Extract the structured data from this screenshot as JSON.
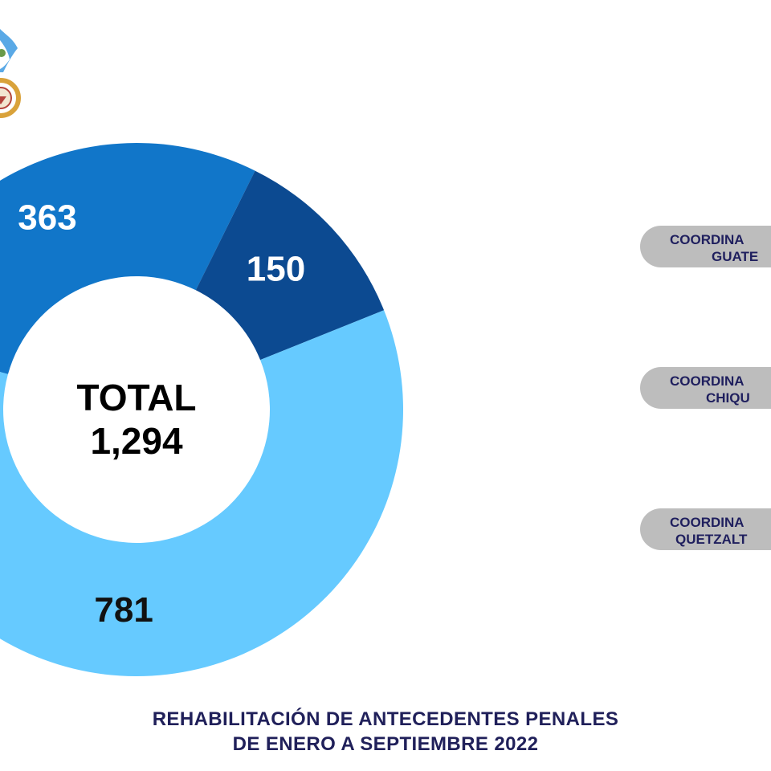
{
  "chart_data": {
    "type": "donut",
    "categories": [
      "COORDINACIÓN GUATEMALA",
      "COORDINACIÓN CHIQUIMULA",
      "COORDINACIÓN QUETZALTENANGO"
    ],
    "values": [
      363,
      150,
      781
    ],
    "colors": [
      "#1176c9",
      "#0c4a91",
      "#66caff"
    ],
    "label_colors": [
      "#ffffff",
      "#ffffff",
      "#111111"
    ],
    "center_label": "TOTAL",
    "center_value": "1,294",
    "title_line1": "REHABILITACIÓN DE ANTECEDENTES PENALES",
    "title_line2": "DE ENERO A SEPTIEMBRE 2022",
    "legend_position": "right"
  },
  "legend": {
    "items": [
      {
        "line1": "COORDINA",
        "line2": "GUATE"
      },
      {
        "line1": "COORDINA",
        "line2": "CHIQU"
      },
      {
        "line1": "COORDINA",
        "line2": "QUETZALT"
      }
    ]
  },
  "logo": {
    "icon": "institutional-seal-with-flag-icon"
  }
}
